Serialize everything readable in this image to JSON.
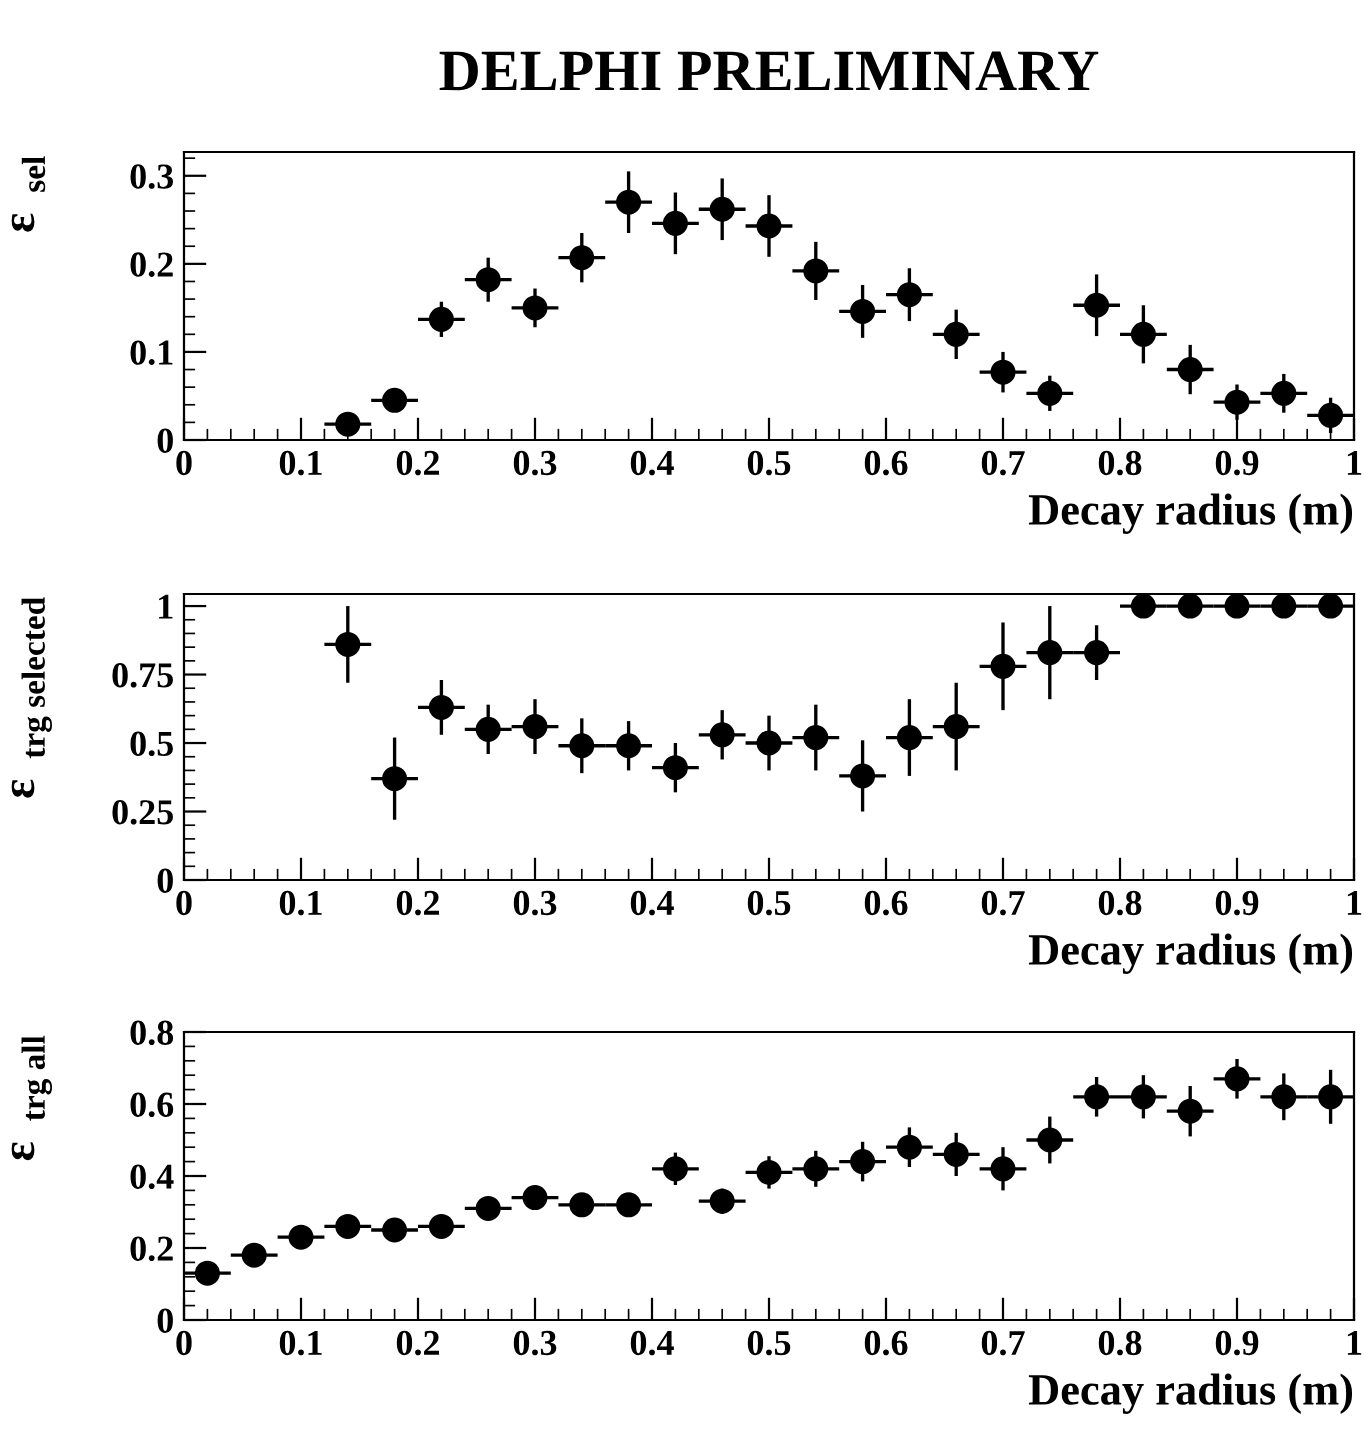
{
  "chart_data": [
    {
      "type": "scatter",
      "title": "DELPHI PRELIMINARY",
      "xlabel": "Decay radius (m)",
      "ylabel": "ε$_{sel}$",
      "marker": "circle",
      "grid": false,
      "legend": false,
      "xlim": [
        0,
        1
      ],
      "xticks": [
        0,
        0.1,
        0.2,
        0.3,
        0.4,
        0.5,
        0.6,
        0.7,
        0.8,
        0.9,
        1
      ],
      "ylim": [
        0,
        0.327
      ],
      "yticks": [
        0,
        0.1,
        0.2,
        0.3
      ],
      "x": [
        0.14,
        0.18,
        0.22,
        0.26,
        0.3,
        0.34,
        0.38,
        0.42,
        0.46,
        0.5,
        0.54,
        0.58,
        0.62,
        0.66,
        0.7,
        0.74,
        0.78,
        0.82,
        0.86,
        0.9,
        0.94,
        0.98
      ],
      "series": [
        {
          "color": "#000000",
          "values": [
            0.018,
            0.045,
            0.137,
            0.182,
            0.15,
            0.207,
            0.27,
            0.246,
            0.262,
            0.243,
            0.192,
            0.146,
            0.165,
            0.12,
            0.077,
            0.053,
            0.153,
            0.12,
            0.08,
            0.043,
            0.053,
            0.028
          ],
          "errors": [
            null,
            null,
            0.02,
            0.025,
            0.022,
            0.028,
            0.035,
            0.035,
            0.035,
            0.035,
            0.033,
            0.03,
            0.03,
            0.028,
            0.023,
            0.02,
            0.035,
            0.033,
            0.028,
            0.02,
            0.022,
            0.02
          ],
          "xerrors": [
            0.02,
            0.02,
            0.02,
            0.02,
            0.02,
            0.02,
            0.02,
            0.02,
            0.02,
            0.02,
            0.02,
            0.02,
            0.02,
            0.02,
            0.02,
            0.02,
            0.02,
            0.02,
            0.02,
            0.02,
            0.02,
            0.02
          ]
        }
      ]
    },
    {
      "type": "scatter",
      "xlabel": "Decay radius (m)",
      "ylabel": "ε$_{trg selected}$",
      "marker": "circle",
      "grid": false,
      "legend": false,
      "xlim": [
        0,
        1
      ],
      "xticks": [
        0,
        0.1,
        0.2,
        0.3,
        0.4,
        0.5,
        0.6,
        0.7,
        0.8,
        0.9,
        1
      ],
      "ylim": [
        0,
        1.044
      ],
      "yticks": [
        0,
        0.25,
        0.5,
        0.75,
        1
      ],
      "x": [
        0.14,
        0.18,
        0.22,
        0.26,
        0.3,
        0.34,
        0.38,
        0.42,
        0.46,
        0.5,
        0.54,
        0.58,
        0.62,
        0.66,
        0.7,
        0.74,
        0.78,
        0.82,
        0.86,
        0.9,
        0.94,
        0.98
      ],
      "series": [
        {
          "color": "#000000",
          "values": [
            0.86,
            0.37,
            0.63,
            0.55,
            0.56,
            0.49,
            0.49,
            0.41,
            0.53,
            0.5,
            0.52,
            0.38,
            0.52,
            0.56,
            0.78,
            0.83,
            0.83,
            1.0,
            1.0,
            1.0,
            1.0,
            1.0
          ],
          "errors": [
            0.14,
            0.15,
            0.1,
            0.09,
            0.1,
            0.1,
            0.09,
            0.09,
            0.09,
            0.1,
            0.12,
            0.13,
            0.14,
            0.16,
            0.16,
            0.17,
            0.1,
            null,
            null,
            null,
            null,
            null
          ],
          "xerrors": [
            0.02,
            0.02,
            0.02,
            0.02,
            0.02,
            0.02,
            0.02,
            0.02,
            0.02,
            0.02,
            0.02,
            0.02,
            0.02,
            0.02,
            0.02,
            0.02,
            0.02,
            0.02,
            0.02,
            0.02,
            0.02,
            0.02
          ]
        }
      ]
    },
    {
      "type": "scatter",
      "xlabel": "Decay radius (m)",
      "ylabel": "ε$_{trg all}$",
      "marker": "circle",
      "grid": false,
      "legend": false,
      "xlim": [
        0,
        1
      ],
      "xticks": [
        0,
        0.1,
        0.2,
        0.3,
        0.4,
        0.5,
        0.6,
        0.7,
        0.8,
        0.9,
        1
      ],
      "ylim": [
        0,
        0.8
      ],
      "yticks": [
        0,
        0.2,
        0.4,
        0.6,
        0.8
      ],
      "x": [
        0.02,
        0.06,
        0.1,
        0.14,
        0.18,
        0.22,
        0.26,
        0.3,
        0.34,
        0.38,
        0.42,
        0.46,
        0.5,
        0.54,
        0.58,
        0.62,
        0.66,
        0.7,
        0.74,
        0.78,
        0.82,
        0.86,
        0.9,
        0.94,
        0.98
      ],
      "series": [
        {
          "color": "#000000",
          "values": [
            0.13,
            0.18,
            0.23,
            0.26,
            0.25,
            0.26,
            0.31,
            0.34,
            0.32,
            0.32,
            0.42,
            0.33,
            0.41,
            0.42,
            0.44,
            0.48,
            0.46,
            0.42,
            0.5,
            0.62,
            0.62,
            0.58,
            0.67,
            0.62,
            0.62
          ],
          "errors": [
            0.02,
            0.015,
            0.015,
            0.015,
            0.015,
            0.02,
            0.02,
            0.025,
            0.02,
            0.02,
            0.045,
            0.035,
            0.045,
            0.05,
            0.055,
            0.055,
            0.06,
            0.06,
            0.065,
            0.055,
            0.06,
            0.07,
            0.055,
            0.065,
            0.075
          ],
          "xerrors": [
            0.02,
            0.02,
            0.02,
            0.02,
            0.02,
            0.02,
            0.02,
            0.02,
            0.02,
            0.02,
            0.02,
            0.02,
            0.02,
            0.02,
            0.02,
            0.02,
            0.02,
            0.02,
            0.02,
            0.02,
            0.02,
            0.02,
            0.02,
            0.02,
            0.02
          ]
        }
      ]
    }
  ]
}
